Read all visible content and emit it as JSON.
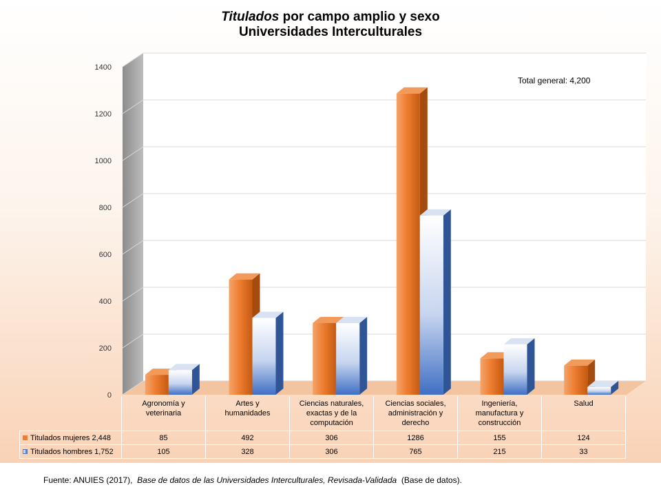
{
  "title": {
    "line1_italic": "Titulados",
    "line1_rest": "por campo amplio y sexo",
    "line2": "Universidades Interculturales"
  },
  "total_label": "Total general: 4,200",
  "source": {
    "prefix": "Fuente: ANUIES (2017),",
    "italic": "Base de datos de las Universidades Interculturales, Revisada-Validada",
    "suffix": "(Base de datos)."
  },
  "colors": {
    "women": "#ed7d31",
    "men": "#4472c4"
  },
  "chart_data": {
    "type": "bar",
    "categories": [
      [
        "Agronomía y",
        "veterinaria"
      ],
      [
        "Artes y",
        "humanidades"
      ],
      [
        "Ciencias naturales,",
        "exactas y de la",
        "computación"
      ],
      [
        "Ciencias sociales,",
        "administración y",
        "derecho"
      ],
      [
        "Ingeniería,",
        "manufactura y",
        "construcción"
      ],
      [
        "Salud"
      ]
    ],
    "series": [
      {
        "name": "Titulados mujeres 2,448",
        "values": [
          85,
          492,
          306,
          1286,
          155,
          124
        ]
      },
      {
        "name": "Titulados hombres 1,752",
        "values": [
          105,
          328,
          306,
          765,
          215,
          33
        ]
      }
    ],
    "yticks": [
      0,
      200,
      400,
      600,
      800,
      1000,
      1200,
      1400
    ],
    "ylim": [
      0,
      1400
    ],
    "grid": true,
    "legend": "data table below chart"
  }
}
